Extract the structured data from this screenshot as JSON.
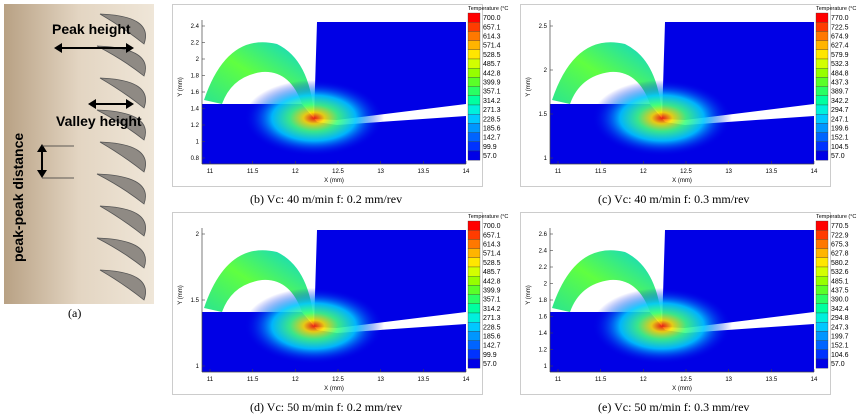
{
  "panel_a": {
    "labels": [
      "Peak height",
      "Valley height",
      "peak-peak distance"
    ],
    "caption": "(a)"
  },
  "panels": [
    {
      "caption": "(b) Vc: 40 m/min f: 0.2 mm/rev",
      "legend_title": "Temperature (°C",
      "legend_values": [
        "700.0",
        "657.1",
        "614.3",
        "571.4",
        "528.5",
        "485.7",
        "442.8",
        "399.9",
        "357.1",
        "314.2",
        "271.3",
        "228.5",
        "185.6",
        "142.7",
        "99.9",
        "57.0"
      ],
      "x_label": "X (mm)",
      "y_label": "Y (mm)",
      "x_ticks": [
        "11",
        "11.5",
        "12",
        "12.5",
        "13",
        "13.5",
        "14"
      ],
      "y_ticks": [
        "2.4",
        "2.2",
        "2",
        "1.8",
        "1.6",
        "1.4",
        "1.2",
        "1",
        "0.8"
      ]
    },
    {
      "caption": "(c) Vc: 40 m/min f: 0.3 mm/rev",
      "legend_title": "Temperature (°C",
      "legend_values": [
        "770.0",
        "722.5",
        "674.9",
        "627.4",
        "579.9",
        "532.3",
        "484.8",
        "437.3",
        "389.7",
        "342.2",
        "294.7",
        "247.1",
        "199.6",
        "152.1",
        "104.5",
        "57.0"
      ],
      "x_label": "X (mm)",
      "y_label": "Y (mm)",
      "x_ticks": [
        "11",
        "11.5",
        "12",
        "12.5",
        "13",
        "13.5",
        "14"
      ],
      "y_ticks": [
        "2.5",
        "2",
        "1.5",
        "1"
      ]
    },
    {
      "caption": "(d) Vc: 50 m/min f: 0.2 mm/rev",
      "legend_title": "Temperature (°C",
      "legend_values": [
        "700.0",
        "657.1",
        "614.3",
        "571.4",
        "528.5",
        "485.7",
        "442.8",
        "399.9",
        "357.1",
        "314.2",
        "271.3",
        "228.5",
        "185.6",
        "142.7",
        "99.9",
        "57.0"
      ],
      "x_label": "X (mm)",
      "y_label": "Y (mm)",
      "x_ticks": [
        "11",
        "11.5",
        "12",
        "12.5",
        "13",
        "13.5",
        "14"
      ],
      "y_ticks": [
        "2",
        "1.5",
        "1"
      ]
    },
    {
      "caption": "(e) Vc: 50 m/min f: 0.3 mm/rev",
      "legend_title": "Temperature (°C",
      "legend_values": [
        "770.5",
        "722.9",
        "675.3",
        "627.8",
        "580.2",
        "532.6",
        "485.1",
        "437.5",
        "390.0",
        "342.4",
        "294.8",
        "247.3",
        "199.7",
        "152.1",
        "104.6",
        "57.0"
      ],
      "x_label": "X (mm)",
      "y_label": "Y (mm)",
      "x_ticks": [
        "11",
        "11.5",
        "12",
        "12.5",
        "13",
        "13.5",
        "14"
      ],
      "y_ticks": [
        "2.6",
        "2.4",
        "2.2",
        "2",
        "1.8",
        "1.6",
        "1.4",
        "1.2",
        "1"
      ]
    }
  ]
}
